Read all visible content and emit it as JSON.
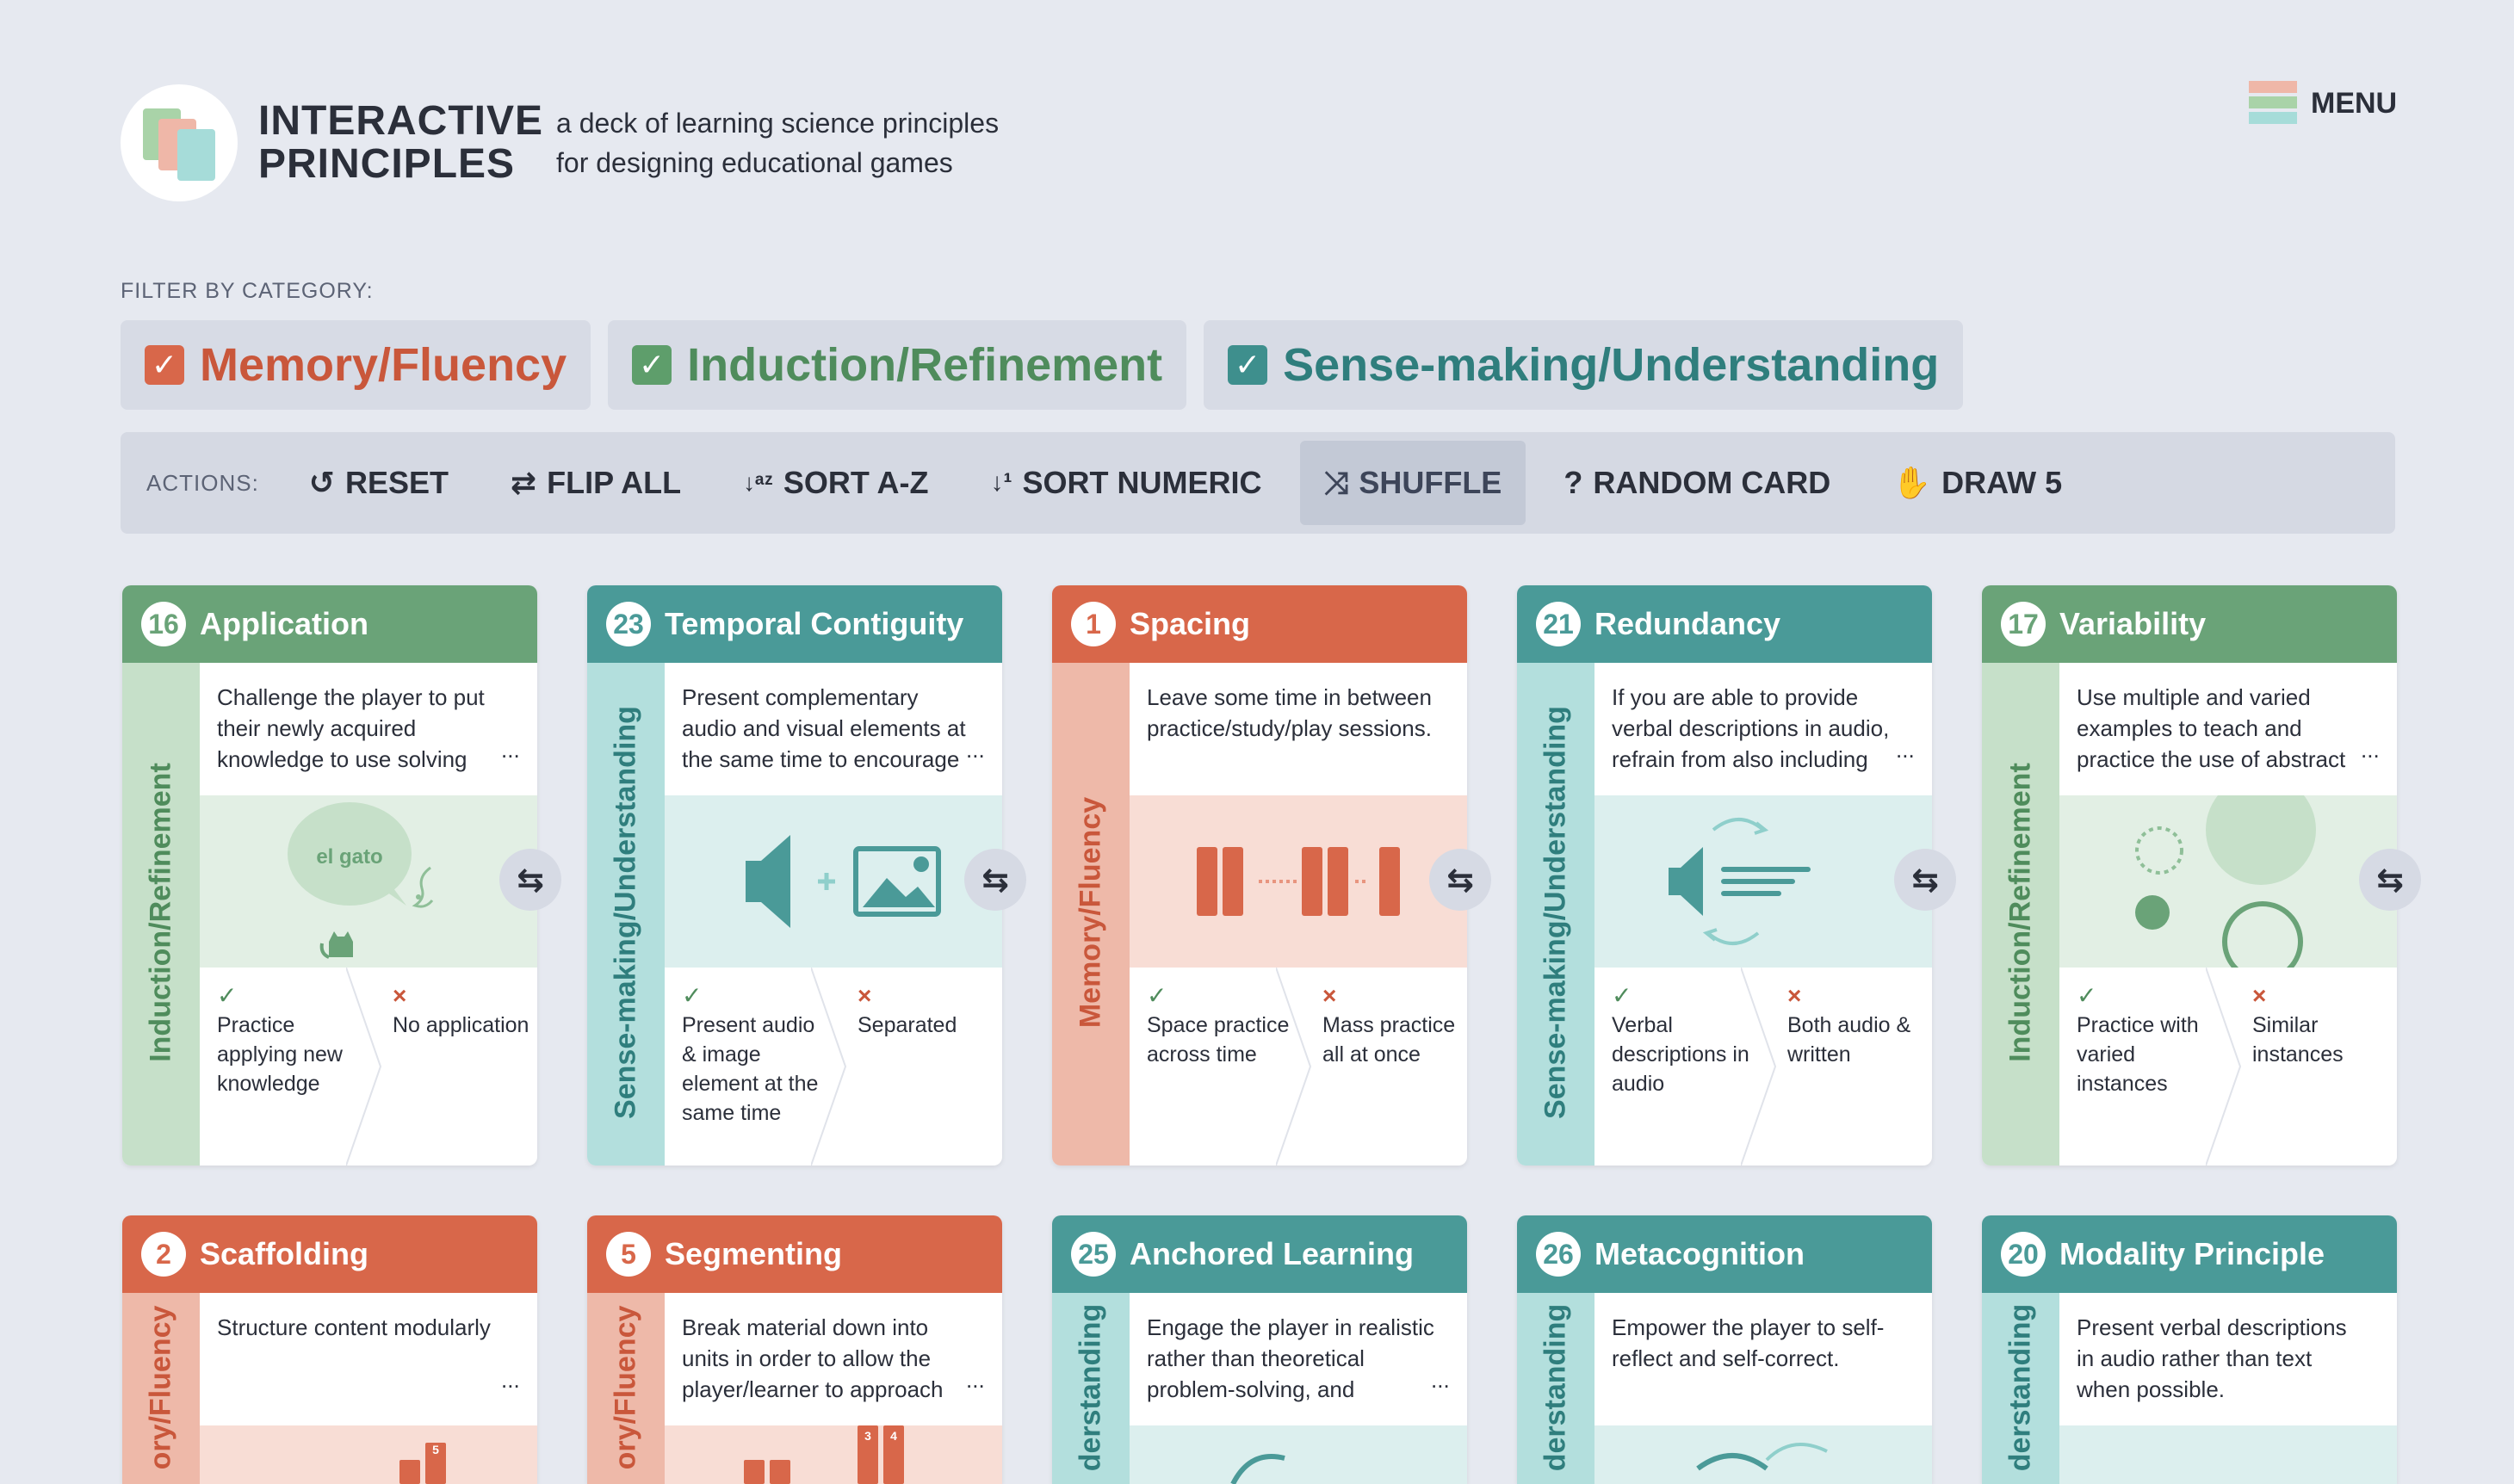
{
  "header": {
    "brand_line1": "INTERACTIVE",
    "brand_line2": "PRINCIPLES",
    "tagline_line1": "a deck of learning science principles",
    "tagline_line2": "for designing educational games",
    "menu_label": "MENU"
  },
  "filters": {
    "title": "FILTER BY CATEGORY:",
    "items": [
      {
        "label": "Memory/Fluency",
        "checked": true,
        "color": "#d8674a"
      },
      {
        "label": "Induction/Refinement",
        "checked": true,
        "color": "#5e9e6b"
      },
      {
        "label": "Sense-making/Understanding",
        "checked": true,
        "color": "#3e8f8d"
      }
    ]
  },
  "actions": {
    "title": "ACTIONS:",
    "items": [
      {
        "label": "RESET",
        "icon": "reset-icon"
      },
      {
        "label": "FLIP ALL",
        "icon": "flip-icon"
      },
      {
        "label": "SORT A-Z",
        "icon": "sort-alpha-icon"
      },
      {
        "label": "SORT NUMERIC",
        "icon": "sort-numeric-icon"
      },
      {
        "label": "SHUFFLE",
        "icon": "shuffle-icon",
        "active": true
      },
      {
        "label": "RANDOM CARD",
        "icon": "question-icon"
      },
      {
        "label": "DRAW 5",
        "icon": "hand-icon"
      }
    ]
  },
  "glyphs": {
    "check": "✓",
    "tick": "✓",
    "cross": "×",
    "flip": "⇆",
    "ellipsis": "...",
    "reset": "↺",
    "flip_all": "⇄",
    "sort_alpha": "↓ᵃᶻ",
    "sort_numeric": "↓¹",
    "shuffle": "⤨",
    "question": "?",
    "hand": "✋"
  },
  "cards_row1": [
    {
      "num": "16",
      "title": "Application",
      "category": "Induction/Refinement",
      "desc": "Challenge the player to put their newly acquired knowledge to use solving",
      "illus_text": "el gato",
      "do": "Practice applying new knowledge",
      "dont": "No application"
    },
    {
      "num": "23",
      "title": "Temporal Contiguity",
      "category": "Sense-making/Understanding",
      "desc": "Present complementary audio and visual elements at the same time to encourage",
      "do": "Present audio & image element at the same time",
      "dont": "Separated"
    },
    {
      "num": "1",
      "title": "Spacing",
      "category": "Memory/Fluency",
      "desc": "Leave some time in between practice/study/play sessions.",
      "do": "Space practice across time",
      "dont": "Mass practice all at once"
    },
    {
      "num": "21",
      "title": "Redundancy",
      "category": "Sense-making/Understanding",
      "desc": "If you are able to provide verbal descriptions in audio, refrain from also including",
      "do": "Verbal descriptions in audio",
      "dont": "Both audio & written"
    },
    {
      "num": "17",
      "title": "Variability",
      "category": "Induction/Refinement",
      "desc": "Use multiple and varied examples to teach and practice the use of abstract",
      "do": "Practice with varied instances",
      "dont": "Similar instances"
    }
  ],
  "cards_row2": [
    {
      "num": "2",
      "title": "Scaffolding",
      "category": "ory/Fluency",
      "desc": "Structure content modularly",
      "illus_num": "5"
    },
    {
      "num": "5",
      "title": "Segmenting",
      "category": "ory/Fluency",
      "desc": "Break material down into units in order to allow the player/learner to approach",
      "illus_num_a": "3",
      "illus_num_b": "4"
    },
    {
      "num": "25",
      "title": "Anchored Learning",
      "category": "derstanding",
      "desc": "Engage the player in realistic rather than theoretical problem-solving, and"
    },
    {
      "num": "26",
      "title": "Metacognition",
      "category": "derstanding",
      "desc": "Empower the player to self-reflect and self-correct."
    },
    {
      "num": "20",
      "title": "Modality Principle",
      "category": "derstanding",
      "desc": "Present verbal descriptions in audio rather than text when possible."
    }
  ]
}
